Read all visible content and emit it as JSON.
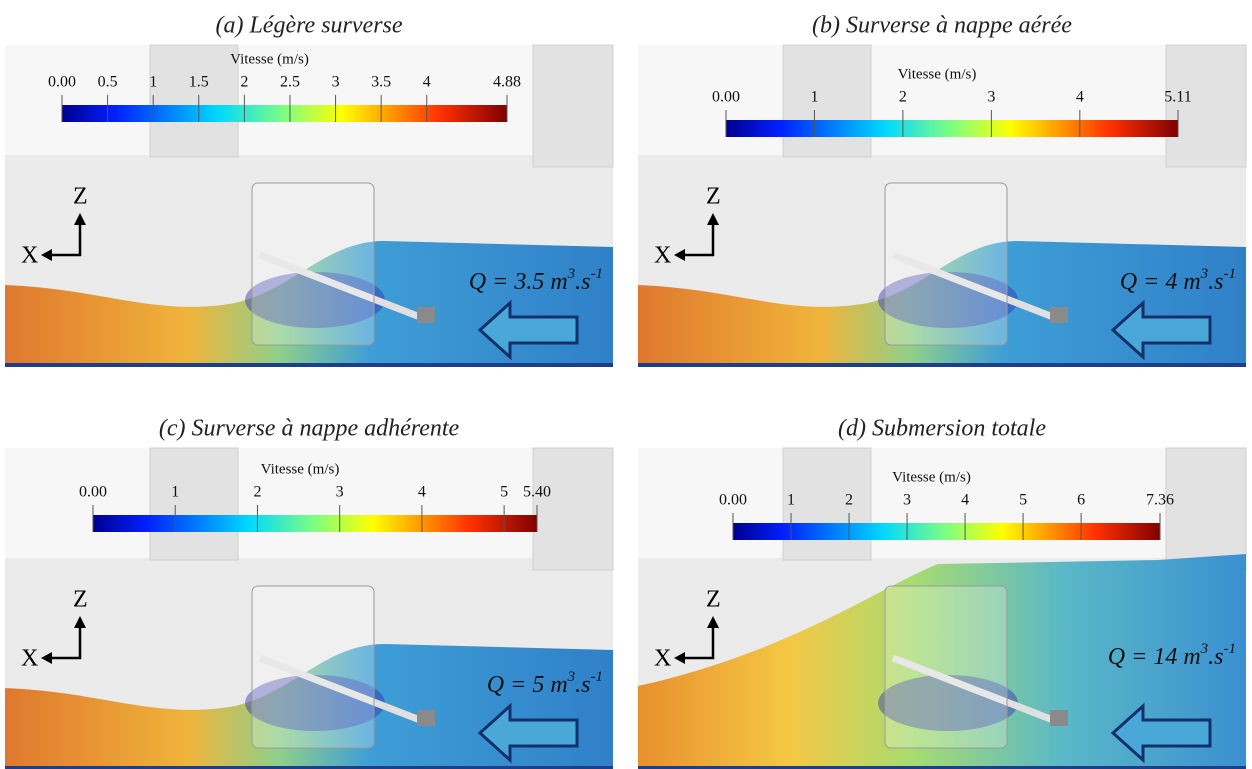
{
  "panels": [
    {
      "title": "(a) Légère surverse",
      "colorbar": {
        "label": "Vitesse (m/s)",
        "ticks": [
          {
            "value": 0,
            "label": "0.00"
          },
          0.5,
          1,
          1.5,
          2,
          2.5,
          3,
          3.5,
          4,
          4.88
        ]
      },
      "axes": {
        "x": "X",
        "z": "Z"
      },
      "flow": {
        "prefix": "Q = 3.5 m",
        "exp1": "3",
        "mid": ".s",
        "exp2": "-1"
      }
    },
    {
      "title": "(b) Surverse à nappe aérée",
      "colorbar": {
        "label": "Vitesse (m/s)",
        "ticks": [
          {
            "value": 0,
            "label": "0.00"
          },
          1,
          2,
          3,
          4,
          5.11
        ]
      },
      "axes": {
        "x": "X",
        "z": "Z"
      },
      "flow": {
        "prefix": "Q = 4 m",
        "exp1": "3",
        "mid": ".s",
        "exp2": "-1"
      }
    },
    {
      "title": "(c) Surverse à nappe adhérente",
      "colorbar": {
        "label": "Vitesse (m/s)",
        "ticks": [
          {
            "value": 0,
            "label": "0.00"
          },
          1,
          2,
          3,
          4,
          5,
          {
            "value": 5.4,
            "label": "5.40"
          }
        ]
      },
      "axes": {
        "x": "X",
        "z": "Z"
      },
      "flow": {
        "prefix": "Q = 5 m",
        "exp1": "3",
        "mid": ".s",
        "exp2": "-1"
      }
    },
    {
      "title": "(d) Submersion totale",
      "colorbar": {
        "label": "Vitesse (m/s)",
        "ticks": [
          {
            "value": 0,
            "label": "0.00"
          },
          1,
          2,
          3,
          4,
          5,
          6,
          7.36
        ]
      },
      "axes": {
        "x": "X",
        "z": "Z"
      },
      "flow": {
        "prefix": "Q = 14 m",
        "exp1": "3",
        "mid": ".s",
        "exp2": "-1"
      }
    }
  ]
}
